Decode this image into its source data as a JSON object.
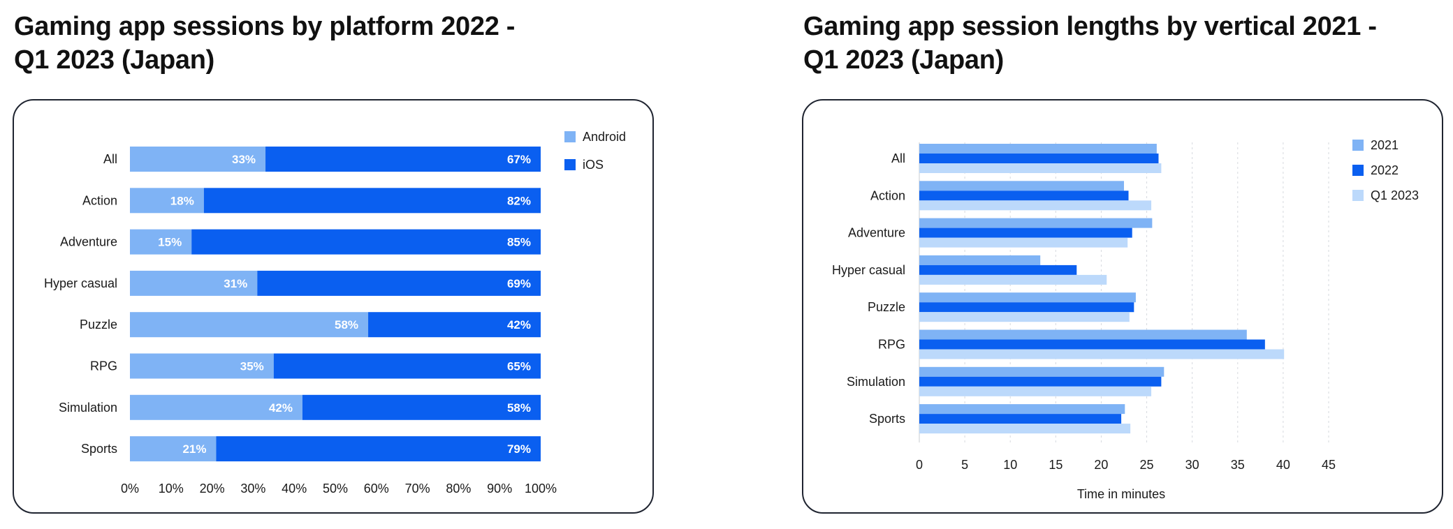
{
  "charts": [
    {
      "title_lines": [
        "Gaming app sessions by platform 2022 -",
        "Q1 2023 (Japan)"
      ]
    },
    {
      "title_lines": [
        "Gaming app session lengths by vertical 2021 -",
        "Q1 2023 (Japan)"
      ]
    }
  ],
  "chart_data": [
    {
      "type": "bar",
      "orientation": "horizontal",
      "stacked": true,
      "title": "Gaming app sessions by platform 2022 - Q1 2023 (Japan)",
      "categories": [
        "All",
        "Action",
        "Adventure",
        "Hyper casual",
        "Puzzle",
        "RPG",
        "Simulation",
        "Sports"
      ],
      "series": [
        {
          "name": "Android",
          "color": "#7fb3f5",
          "values": [
            33,
            18,
            15,
            31,
            58,
            35,
            42,
            21
          ],
          "labels": [
            "33%",
            "18%",
            "15%",
            "31%",
            "58%",
            "35%",
            "42%",
            "21%"
          ]
        },
        {
          "name": "iOS",
          "color": "#0a5ff0",
          "values": [
            67,
            82,
            85,
            69,
            42,
            65,
            58,
            79
          ],
          "labels": [
            "67%",
            "82%",
            "85%",
            "69%",
            "42%",
            "65%",
            "58%",
            "79%"
          ]
        }
      ],
      "xlim": [
        0,
        100
      ],
      "xticks": [
        "0%",
        "10%",
        "20%",
        "30%",
        "40%",
        "50%",
        "60%",
        "70%",
        "80%",
        "90%",
        "100%"
      ],
      "legend": "top-right",
      "grid": false
    },
    {
      "type": "bar",
      "orientation": "horizontal",
      "stacked": false,
      "title": "Gaming app session lengths by vertical 2021 - Q1 2023 (Japan)",
      "xlabel": "Time in minutes",
      "categories": [
        "All",
        "Action",
        "Adventure",
        "Hyper casual",
        "Puzzle",
        "RPG",
        "Simulation",
        "Sports"
      ],
      "series": [
        {
          "name": "2021",
          "color": "#7fb3f5",
          "values": [
            26.1,
            22.5,
            25.6,
            13.3,
            23.8,
            36.0,
            26.9,
            22.6
          ]
        },
        {
          "name": "2022",
          "color": "#0a5ff0",
          "values": [
            26.3,
            23.0,
            23.4,
            17.3,
            23.6,
            38.0,
            26.6,
            22.2
          ]
        },
        {
          "name": "Q1 2023",
          "color": "#bcd9fb",
          "values": [
            26.6,
            25.5,
            22.9,
            20.6,
            23.1,
            40.1,
            25.5,
            23.2
          ]
        }
      ],
      "xlim": [
        0,
        45
      ],
      "xticks": [
        "0",
        "5",
        "10",
        "15",
        "20",
        "25",
        "30",
        "35",
        "40",
        "45"
      ],
      "legend": "top-right",
      "grid": true
    }
  ]
}
